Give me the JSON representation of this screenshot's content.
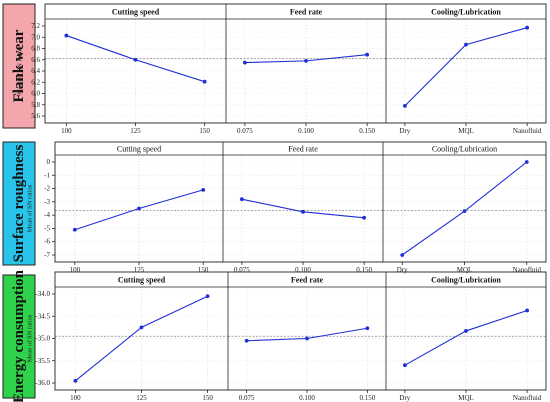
{
  "chart_data": [
    {
      "type": "line",
      "response": "Flank wear",
      "response_color": "#f4a6ac",
      "ylabel": "Mean of SN ratios",
      "yticks": [
        "7.2",
        "7.0",
        "6.8",
        "6.6",
        "6.4",
        "6.2",
        "6.0",
        "5.8",
        "5.6"
      ],
      "ylim": [
        5.6,
        7.2
      ],
      "mean_line": 6.62,
      "panels": [
        {
          "title": "Cutting speed",
          "categories": [
            "100",
            "125",
            "150"
          ],
          "values": [
            7.03,
            6.6,
            6.21
          ]
        },
        {
          "title": "Feed rate",
          "categories": [
            "0.075",
            "0.100",
            "0.150"
          ],
          "values": [
            6.55,
            6.58,
            6.69
          ]
        },
        {
          "title": "Cooling/Lubrication",
          "categories": [
            "Dry",
            "MQL",
            "Nanofluid"
          ],
          "values": [
            5.78,
            6.87,
            7.17
          ]
        }
      ]
    },
    {
      "type": "line",
      "response": "Surface roughness",
      "response_color": "#29c4ea",
      "ylabel": "Mean of SN ratios",
      "yticks": [
        "0",
        "-1",
        "-2",
        "-3",
        "-4",
        "-5",
        "-6",
        "-7"
      ],
      "ylim": [
        -7,
        0
      ],
      "mean_line": -3.65,
      "panels": [
        {
          "title": "Cutting speed",
          "categories": [
            "100",
            "125",
            "150"
          ],
          "values": [
            -5.1,
            -3.5,
            -2.1
          ]
        },
        {
          "title": "Feed rate",
          "categories": [
            "0.075",
            "0.100",
            "0.150"
          ],
          "values": [
            -2.8,
            -3.75,
            -4.2
          ]
        },
        {
          "title": "Cooling/Lubrication",
          "categories": [
            "Dry",
            "MQL",
            "Nanofluid"
          ],
          "values": [
            -7.0,
            -3.7,
            0.0
          ]
        }
      ]
    },
    {
      "type": "line",
      "response": "Energy consumption",
      "response_color": "#2fd24a",
      "ylabel": "Mean of SN ratios",
      "yticks": [
        "-34.0",
        "-34.5",
        "-35.0",
        "-35.5",
        "-36.0"
      ],
      "ylim": [
        -36.0,
        -34.0
      ],
      "mean_line": -34.95,
      "panels": [
        {
          "title": "Cutting speed",
          "categories": [
            "100",
            "125",
            "150"
          ],
          "values": [
            -35.95,
            -34.75,
            -34.05
          ]
        },
        {
          "title": "Feed rate",
          "categories": [
            "0.075",
            "0.100",
            "0.150"
          ],
          "values": [
            -35.05,
            -35.0,
            -34.77
          ]
        },
        {
          "title": "Cooling/Lubrication",
          "categories": [
            "Dry",
            "MQL",
            "Nanofluid"
          ],
          "values": [
            -35.6,
            -34.83,
            -34.37
          ]
        }
      ]
    }
  ]
}
